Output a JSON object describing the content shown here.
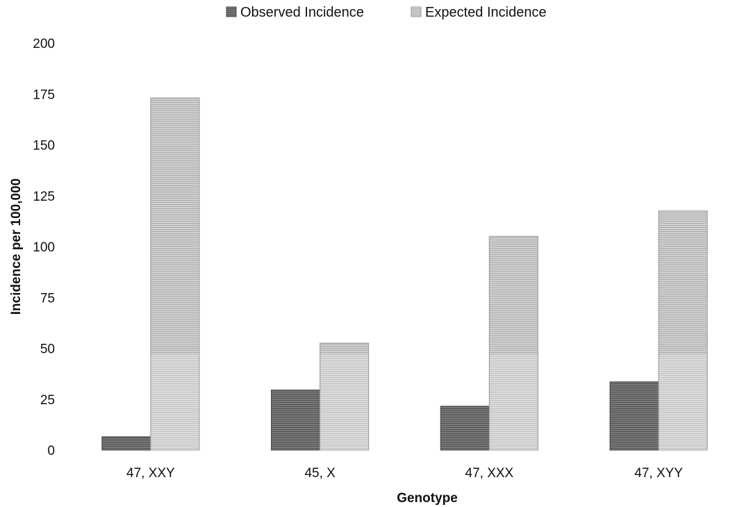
{
  "chart_data": {
    "type": "bar",
    "title": "",
    "xlabel": "Genotype",
    "ylabel": "Incidence per 100,000",
    "ylim": [
      0,
      200
    ],
    "yticks": [
      0,
      25,
      50,
      75,
      100,
      125,
      150,
      175,
      200
    ],
    "grid": false,
    "legend_position": "top-center",
    "categories": [
      "47, XXY",
      "45, X",
      "47, XXX",
      "47, XYY"
    ],
    "series": [
      {
        "name": "Observed Incidence",
        "values": [
          6.5,
          29.5,
          21.5,
          33.5
        ],
        "color": "#6e6e6e"
      },
      {
        "name": "Expected Incidence",
        "values": [
          173,
          52.5,
          105,
          117.5
        ],
        "color": "#c4c4c4"
      }
    ]
  }
}
